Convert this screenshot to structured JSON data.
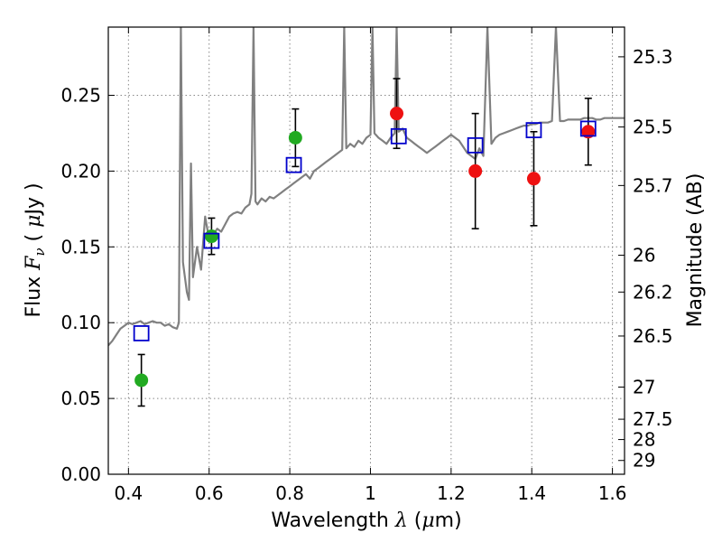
{
  "chart_data": {
    "type": "scatter",
    "xlabel": "Wavelength  λ (μm)",
    "ylabel": "Flux  Fν  ( μJy )",
    "y2label": "Magnitude (AB)",
    "xlim": [
      0.35,
      1.63
    ],
    "ylim": [
      0.0,
      0.295
    ],
    "grid": true,
    "x_ticks": [
      0.4,
      0.6,
      0.8,
      1.0,
      1.2,
      1.4,
      1.6
    ],
    "x_tick_labels": [
      "0.4",
      "0.6",
      "0.8",
      "1",
      "1.2",
      "1.4",
      "1.6"
    ],
    "y_ticks": [
      0.0,
      0.05,
      0.1,
      0.15,
      0.2,
      0.25
    ],
    "y_tick_labels": [
      "0.00",
      "0.05",
      "0.10",
      "0.15",
      "0.20",
      "0.25"
    ],
    "y2_ticks": [
      {
        "label": "25.3",
        "flux": 0.2754
      },
      {
        "label": "25.5",
        "flux": 0.2291
      },
      {
        "label": "25.7",
        "flux": 0.1905
      },
      {
        "label": "26",
        "flux": 0.1445
      },
      {
        "label": "26.2",
        "flux": 0.1202
      },
      {
        "label": "26.5",
        "flux": 0.0912
      },
      {
        "label": "27",
        "flux": 0.0575
      },
      {
        "label": "27.5",
        "flux": 0.0363
      },
      {
        "label": "28",
        "flux": 0.0229
      },
      {
        "label": "29",
        "flux": 0.0091
      }
    ],
    "colors": {
      "model": "#808080",
      "green": "#22aa22",
      "red": "#ee1111",
      "blue": "#0000cc",
      "grid": "#888888"
    },
    "model_spectrum": [
      [
        0.35,
        0.085
      ],
      [
        0.36,
        0.088
      ],
      [
        0.37,
        0.092
      ],
      [
        0.38,
        0.096
      ],
      [
        0.39,
        0.098
      ],
      [
        0.4,
        0.1
      ],
      [
        0.41,
        0.099
      ],
      [
        0.42,
        0.1
      ],
      [
        0.43,
        0.101
      ],
      [
        0.44,
        0.099
      ],
      [
        0.45,
        0.1
      ],
      [
        0.46,
        0.101
      ],
      [
        0.47,
        0.1
      ],
      [
        0.48,
        0.1
      ],
      [
        0.49,
        0.098
      ],
      [
        0.5,
        0.099
      ],
      [
        0.51,
        0.097
      ],
      [
        0.52,
        0.096
      ],
      [
        0.525,
        0.1
      ],
      [
        0.53,
        0.295
      ],
      [
        0.535,
        0.14
      ],
      [
        0.54,
        0.13
      ],
      [
        0.545,
        0.12
      ],
      [
        0.55,
        0.115
      ],
      [
        0.555,
        0.205
      ],
      [
        0.56,
        0.13
      ],
      [
        0.57,
        0.15
      ],
      [
        0.58,
        0.135
      ],
      [
        0.59,
        0.17
      ],
      [
        0.6,
        0.155
      ],
      [
        0.61,
        0.158
      ],
      [
        0.62,
        0.162
      ],
      [
        0.63,
        0.16
      ],
      [
        0.64,
        0.165
      ],
      [
        0.65,
        0.17
      ],
      [
        0.66,
        0.172
      ],
      [
        0.67,
        0.173
      ],
      [
        0.68,
        0.172
      ],
      [
        0.69,
        0.176
      ],
      [
        0.7,
        0.178
      ],
      [
        0.705,
        0.185
      ],
      [
        0.71,
        0.295
      ],
      [
        0.715,
        0.18
      ],
      [
        0.72,
        0.178
      ],
      [
        0.73,
        0.182
      ],
      [
        0.74,
        0.18
      ],
      [
        0.75,
        0.183
      ],
      [
        0.76,
        0.182
      ],
      [
        0.77,
        0.184
      ],
      [
        0.78,
        0.186
      ],
      [
        0.79,
        0.188
      ],
      [
        0.8,
        0.19
      ],
      [
        0.81,
        0.192
      ],
      [
        0.82,
        0.194
      ],
      [
        0.83,
        0.196
      ],
      [
        0.84,
        0.198
      ],
      [
        0.85,
        0.195
      ],
      [
        0.86,
        0.2
      ],
      [
        0.87,
        0.202
      ],
      [
        0.88,
        0.204
      ],
      [
        0.89,
        0.206
      ],
      [
        0.9,
        0.208
      ],
      [
        0.91,
        0.21
      ],
      [
        0.92,
        0.212
      ],
      [
        0.93,
        0.214
      ],
      [
        0.935,
        0.295
      ],
      [
        0.94,
        0.215
      ],
      [
        0.95,
        0.218
      ],
      [
        0.96,
        0.216
      ],
      [
        0.97,
        0.22
      ],
      [
        0.98,
        0.218
      ],
      [
        0.99,
        0.222
      ],
      [
        1.0,
        0.224
      ],
      [
        1.005,
        0.295
      ],
      [
        1.01,
        0.225
      ],
      [
        1.02,
        0.222
      ],
      [
        1.03,
        0.22
      ],
      [
        1.04,
        0.218
      ],
      [
        1.05,
        0.222
      ],
      [
        1.06,
        0.225
      ],
      [
        1.065,
        0.295
      ],
      [
        1.07,
        0.226
      ],
      [
        1.08,
        0.228
      ],
      [
        1.09,
        0.222
      ],
      [
        1.1,
        0.22
      ],
      [
        1.11,
        0.218
      ],
      [
        1.12,
        0.216
      ],
      [
        1.13,
        0.214
      ],
      [
        1.14,
        0.212
      ],
      [
        1.15,
        0.214
      ],
      [
        1.16,
        0.216
      ],
      [
        1.17,
        0.218
      ],
      [
        1.18,
        0.22
      ],
      [
        1.19,
        0.222
      ],
      [
        1.2,
        0.224
      ],
      [
        1.21,
        0.222
      ],
      [
        1.22,
        0.22
      ],
      [
        1.23,
        0.216
      ],
      [
        1.24,
        0.212
      ],
      [
        1.25,
        0.21
      ],
      [
        1.26,
        0.208
      ],
      [
        1.27,
        0.215
      ],
      [
        1.28,
        0.21
      ],
      [
        1.29,
        0.295
      ],
      [
        1.3,
        0.218
      ],
      [
        1.31,
        0.222
      ],
      [
        1.32,
        0.224
      ],
      [
        1.33,
        0.225
      ],
      [
        1.34,
        0.226
      ],
      [
        1.35,
        0.227
      ],
      [
        1.36,
        0.228
      ],
      [
        1.37,
        0.229
      ],
      [
        1.38,
        0.23
      ],
      [
        1.39,
        0.23
      ],
      [
        1.4,
        0.231
      ],
      [
        1.41,
        0.231
      ],
      [
        1.42,
        0.232
      ],
      [
        1.43,
        0.232
      ],
      [
        1.44,
        0.232
      ],
      [
        1.45,
        0.233
      ],
      [
        1.46,
        0.295
      ],
      [
        1.47,
        0.233
      ],
      [
        1.48,
        0.233
      ],
      [
        1.49,
        0.234
      ],
      [
        1.5,
        0.234
      ],
      [
        1.51,
        0.234
      ],
      [
        1.52,
        0.234
      ],
      [
        1.53,
        0.235
      ],
      [
        1.54,
        0.235
      ],
      [
        1.55,
        0.235
      ],
      [
        1.56,
        0.234
      ],
      [
        1.57,
        0.234
      ],
      [
        1.58,
        0.235
      ],
      [
        1.59,
        0.235
      ],
      [
        1.6,
        0.235
      ],
      [
        1.61,
        0.235
      ],
      [
        1.62,
        0.235
      ],
      [
        1.63,
        0.235
      ]
    ],
    "green_points": [
      {
        "x": 0.432,
        "y": 0.062,
        "yerr": 0.017
      },
      {
        "x": 0.606,
        "y": 0.157,
        "yerr": 0.012
      },
      {
        "x": 0.814,
        "y": 0.222,
        "yerr": 0.019
      }
    ],
    "red_points": [
      {
        "x": 1.065,
        "y": 0.238,
        "yerr": 0.023
      },
      {
        "x": 1.26,
        "y": 0.2,
        "yerr": 0.038
      },
      {
        "x": 1.405,
        "y": 0.195,
        "yerr": 0.031
      },
      {
        "x": 1.54,
        "y": 0.226,
        "yerr": 0.022
      }
    ],
    "model_points": [
      {
        "x": 0.432,
        "y": 0.093
      },
      {
        "x": 0.606,
        "y": 0.154
      },
      {
        "x": 0.81,
        "y": 0.204
      },
      {
        "x": 1.07,
        "y": 0.223
      },
      {
        "x": 1.26,
        "y": 0.217
      },
      {
        "x": 1.405,
        "y": 0.227
      },
      {
        "x": 1.54,
        "y": 0.228
      }
    ]
  }
}
